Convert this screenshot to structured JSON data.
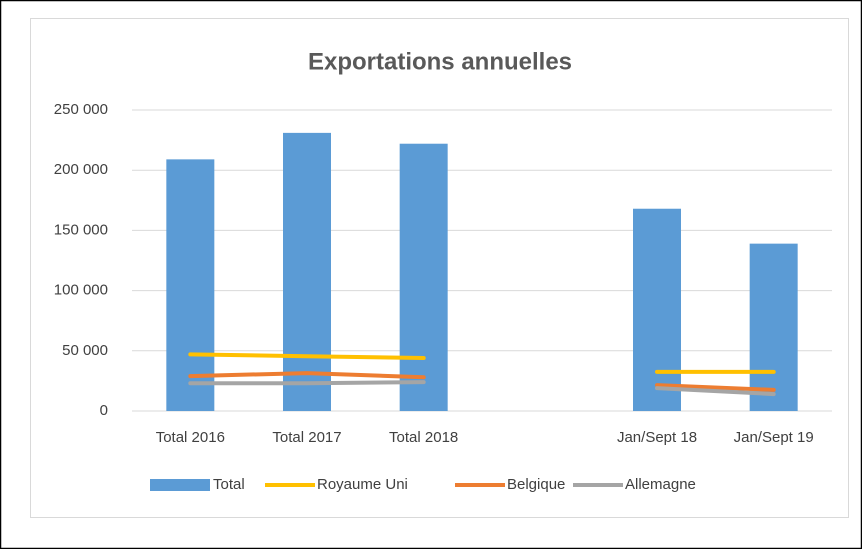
{
  "chart_data": {
    "type": "bar-line",
    "title": "Exportations annuelles",
    "categories": [
      "Total 2016",
      "Total 2017",
      "Total 2018",
      null,
      "Jan/Sept 18",
      "Jan/Sept 19"
    ],
    "series": [
      {
        "name": "Total",
        "type": "bar",
        "color": "#5b9bd5",
        "values": [
          209000,
          231000,
          222000,
          null,
          168000,
          139000
        ]
      },
      {
        "name": "Royaume Uni",
        "type": "line",
        "color": "#ffc000",
        "values": [
          47000,
          45500,
          44000,
          null,
          32500,
          32500
        ]
      },
      {
        "name": "Belgique",
        "type": "line",
        "color": "#ed7d31",
        "values": [
          29000,
          31500,
          28000,
          null,
          21500,
          17500
        ]
      },
      {
        "name": "Allemagne",
        "type": "line",
        "color": "#a5a5a5",
        "values": [
          23000,
          23000,
          24000,
          null,
          19000,
          14000
        ]
      }
    ],
    "ylim": [
      0,
      250000
    ],
    "yticks": [
      0,
      {
        "value": 50000,
        "label": "50 000"
      },
      {
        "value": 100000,
        "label": "100 000"
      },
      {
        "value": 150000,
        "label": "150 000"
      },
      {
        "value": 200000,
        "label": "200 000"
      },
      {
        "value": 250000,
        "label": "250 000"
      }
    ],
    "grid": true,
    "legend": "bottom"
  }
}
